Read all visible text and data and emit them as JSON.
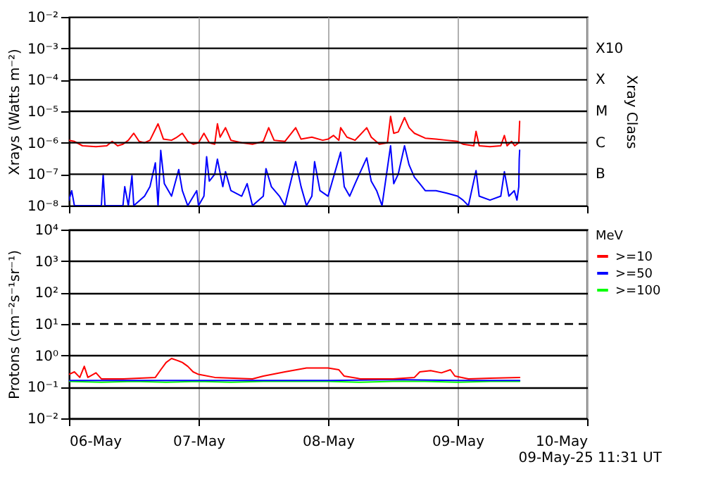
{
  "chart_data": [
    {
      "type": "line",
      "ylabel": "Xrays (Watts m⁻²)",
      "y2label": "Xray Class",
      "log": true,
      "grid": "x",
      "tick_labels": "y",
      "xlim": [
        "--05-06",
        "--05-10"
      ],
      "xticks": [
        {
          "value": "--05-06",
          "label": null
        },
        {
          "value": "--05-07",
          "label": null
        },
        {
          "value": "--05-08",
          "label": null
        },
        {
          "value": "--05-09",
          "label": null
        },
        {
          "value": "--05-10",
          "label": null
        }
      ],
      "ylim": [
        1e-08,
        0.01
      ],
      "yticks": [
        {
          "value": 1e-08,
          "label": "10⁻⁸"
        },
        {
          "value": 1e-07,
          "label": "10⁻⁷"
        },
        {
          "value": 1e-06,
          "label": "10⁻⁶"
        },
        {
          "value": 1e-05,
          "label": "10⁻⁵"
        },
        {
          "value": 0.0001,
          "label": "10⁻⁴"
        },
        {
          "value": 0.001,
          "label": "10⁻³"
        },
        {
          "value": 0.01,
          "label": "10⁻²"
        }
      ],
      "ref_lines": [
        {
          "axis": "y",
          "value": 1e-07,
          "label": "B",
          "color": "#000000"
        },
        {
          "axis": "y",
          "value": 1e-06,
          "label": "C",
          "color": "#000000"
        },
        {
          "axis": "y",
          "value": 1e-05,
          "label": "M",
          "color": "#000000"
        },
        {
          "axis": "y",
          "value": 0.0001,
          "label": "X",
          "color": "#000000"
        },
        {
          "axis": "y",
          "value": 0.001,
          "label": "X10",
          "color": "#000000"
        }
      ],
      "series": [
        {
          "color": "#ff0000",
          "x": [
            "--05-06T00:00",
            "--05-06T01:00",
            "--05-06T02:30",
            "--05-06T05:00",
            "--05-06T07:00",
            "--05-06T08:00",
            "--05-06T09:00",
            "--05-06T10:00",
            "--05-06T11:00",
            "--05-06T12:00",
            "--05-06T13:00",
            "--05-06T14:00",
            "--05-06T15:00",
            "--05-06T16:30",
            "--05-06T17:30",
            "--05-06T19:00",
            "--05-06T20:00",
            "--05-06T21:00",
            "--05-06T22:00",
            "--05-06T23:00",
            "--05-07T00:00",
            "--05-07T01:00",
            "--05-07T02:00",
            "--05-07T03:00",
            "--05-07T03:30",
            "--05-07T04:00",
            "--05-07T05:00",
            "--05-07T06:00",
            "--05-07T08:00",
            "--05-07T10:00",
            "--05-07T12:00",
            "--05-07T13:00",
            "--05-07T14:00",
            "--05-07T16:00",
            "--05-07T18:00",
            "--05-07T19:00",
            "--05-07T21:00",
            "--05-07T23:00",
            "--05-08T00:00",
            "--05-08T01:00",
            "--05-08T02:00",
            "--05-08T02:20",
            "--05-08T03:30",
            "--05-08T05:00",
            "--05-08T07:10",
            "--05-08T08:00",
            "--05-08T09:30",
            "--05-08T11:00",
            "--05-08T11:35",
            "--05-08T12:10",
            "--05-08T13:00",
            "--05-08T14:10",
            "--05-08T15:00",
            "--05-08T16:00",
            "--05-08T18:00",
            "--05-08T20:00",
            "--05-08T22:00",
            "--05-09T00:00",
            "--05-09T01:00",
            "--05-09T03:00",
            "--05-09T03:25",
            "--05-09T04:00",
            "--05-09T06:00",
            "--05-09T08:00",
            "--05-09T08:40",
            "--05-09T09:10",
            "--05-09T10:00",
            "--05-09T10:35",
            "--05-09T11:20",
            "--05-09T11:30"
          ],
          "values": [
            1.2e-06,
            1.1e-06,
            8e-07,
            7.5e-07,
            8e-07,
            1.1e-06,
            8e-07,
            9e-07,
            1.2e-06,
            2e-06,
            1.1e-06,
            1e-06,
            1.2e-06,
            4e-06,
            1.3e-06,
            1.2e-06,
            1.5e-06,
            2e-06,
            1.1e-06,
            9e-07,
            1e-06,
            2e-06,
            1e-06,
            9e-07,
            4e-06,
            1.5e-06,
            3e-06,
            1.2e-06,
            1e-06,
            9e-07,
            1.1e-06,
            3e-06,
            1.2e-06,
            1.1e-06,
            3e-06,
            1.3e-06,
            1.5e-06,
            1.2e-06,
            1.3e-06,
            1.7e-06,
            1.2e-06,
            3e-06,
            1.5e-06,
            1.2e-06,
            3e-06,
            1.5e-06,
            9e-07,
            1e-06,
            6.9e-06,
            2e-06,
            2.2e-06,
            6.3e-06,
            3e-06,
            2e-06,
            1.4e-06,
            1.3e-06,
            1.2e-06,
            1.1e-06,
            9e-07,
            8e-07,
            2.3e-06,
            8e-07,
            7.5e-07,
            8e-07,
            1.7e-06,
            8e-07,
            1.1e-06,
            8e-07,
            1e-06,
            4.8e-06
          ]
        },
        {
          "color": "#0000ff",
          "x": [
            "--05-06T00:00",
            "--05-06T00:30",
            "--05-06T01:00",
            "--05-06T06:00",
            "--05-06T06:20",
            "--05-06T06:40",
            "--05-06T10:00",
            "--05-06T10:20",
            "--05-06T11:00",
            "--05-06T11:40",
            "--05-06T12:00",
            "--05-06T14:00",
            "--05-06T15:00",
            "--05-06T16:00",
            "--05-06T16:30",
            "--05-06T17:00",
            "--05-06T17:40",
            "--05-06T19:00",
            "--05-06T20:20",
            "--05-06T21:00",
            "--05-06T22:00",
            "--05-06T23:40",
            "--05-07T00:00",
            "--05-07T01:00",
            "--05-07T01:30",
            "--05-07T02:00",
            "--05-07T03:00",
            "--05-07T03:30",
            "--05-07T04:30",
            "--05-07T05:00",
            "--05-07T06:00",
            "--05-07T08:00",
            "--05-07T09:00",
            "--05-07T10:00",
            "--05-07T12:00",
            "--05-07T12:30",
            "--05-07T13:30",
            "--05-07T15:00",
            "--05-07T16:00",
            "--05-07T18:00",
            "--05-07T19:00",
            "--05-07T20:00",
            "--05-07T21:00",
            "--05-07T21:30",
            "--05-07T22:30",
            "--05-08T00:00",
            "--05-08T01:00",
            "--05-08T02:20",
            "--05-08T03:00",
            "--05-08T04:00",
            "--05-08T05:00",
            "--05-08T07:10",
            "--05-08T08:00",
            "--05-08T09:00",
            "--05-08T10:00",
            "--05-08T11:35",
            "--05-08T12:10",
            "--05-08T13:00",
            "--05-08T14:10",
            "--05-08T15:00",
            "--05-08T16:00",
            "--05-08T17:00",
            "--05-08T18:00",
            "--05-08T20:00",
            "--05-08T22:00",
            "--05-09T00:00",
            "--05-09T01:00",
            "--05-09T02:00",
            "--05-09T03:25",
            "--05-09T04:00",
            "--05-09T06:00",
            "--05-09T08:00",
            "--05-09T08:40",
            "--05-09T09:30",
            "--05-09T10:30",
            "--05-09T11:00",
            "--05-09T11:20",
            "--05-09T11:25",
            "--05-09T11:30"
          ],
          "values": [
            1.5e-08,
            3e-08,
            1e-08,
            1e-08,
            1e-07,
            1e-08,
            1e-08,
            4e-08,
            1e-08,
            9e-08,
            1e-08,
            2e-08,
            4e-08,
            2.3e-07,
            1e-08,
            5.7e-07,
            5e-08,
            2e-08,
            1.4e-07,
            3e-08,
            1e-08,
            3e-08,
            1e-08,
            2e-08,
            3.6e-07,
            6e-08,
            1e-07,
            3e-07,
            4e-08,
            1.2e-07,
            3e-08,
            2e-08,
            5e-08,
            1e-08,
            2e-08,
            1.5e-07,
            4e-08,
            2e-08,
            1e-08,
            2.5e-07,
            4e-08,
            1e-08,
            2e-08,
            2.5e-07,
            3e-08,
            2e-08,
            8e-08,
            5e-07,
            4e-08,
            2e-08,
            5e-08,
            3.3e-07,
            6e-08,
            3e-08,
            1e-08,
            8e-07,
            5e-08,
            1e-07,
            8e-07,
            2e-07,
            8e-08,
            5e-08,
            3e-08,
            3e-08,
            2.5e-08,
            2e-08,
            1.5e-08,
            1e-08,
            1.3e-07,
            2e-08,
            1.5e-08,
            2e-08,
            1.2e-07,
            2e-08,
            3e-08,
            1.5e-08,
            4e-08,
            3e-07,
            5.8e-07
          ]
        }
      ]
    },
    {
      "type": "line",
      "ylabel": "Protons (cm⁻²s⁻¹sr⁻¹)",
      "legend_title": "MeV",
      "legend": "right",
      "log": true,
      "grid": true,
      "annotations": [
        "09-May-25 11:31 UT"
      ],
      "xlim": [
        "--05-06",
        "--05-10"
      ],
      "xticks": [
        {
          "value": "--05-06",
          "label": "06-May"
        },
        {
          "value": "--05-07",
          "label": "07-May"
        },
        {
          "value": "--05-08",
          "label": "08-May"
        },
        {
          "value": "--05-09",
          "label": "09-May"
        },
        {
          "value": "--05-10",
          "label": "10-May"
        }
      ],
      "ylim": [
        0.01,
        10000
      ],
      "yticks": [
        {
          "value": 0.01,
          "label": "10⁻²"
        },
        {
          "value": 0.1,
          "label": "10⁻¹"
        },
        {
          "value": 1,
          "label": "10⁰"
        },
        {
          "value": 10,
          "label": "10¹"
        },
        {
          "value": 100,
          "label": "10²"
        },
        {
          "value": 1000,
          "label": "10³"
        },
        {
          "value": 10000,
          "label": "10⁴"
        }
      ],
      "ref_lines": [
        {
          "axis": "y",
          "value": 10,
          "color": "#000000",
          "line_style": "dashed"
        }
      ],
      "series": [
        {
          "name": ">=100",
          "color": "#00ff00",
          "x": [
            "--05-06T00:00",
            "--05-06T06:00",
            "--05-06T12:00",
            "--05-06T18:00",
            "--05-07T00:00",
            "--05-07T06:00",
            "--05-07T12:00",
            "--05-07T18:00",
            "--05-08T00:00",
            "--05-08T06:00",
            "--05-08T12:00",
            "--05-08T18:00",
            "--05-09T00:00",
            "--05-09T06:00",
            "--05-09T11:30"
          ],
          "values": [
            0.15,
            0.14,
            0.15,
            0.14,
            0.15,
            0.14,
            0.15,
            0.15,
            0.15,
            0.14,
            0.15,
            0.15,
            0.14,
            0.15,
            0.15
          ]
        },
        {
          "name": ">=50",
          "color": "#0000ff",
          "x": [
            "--05-06T00:00",
            "--05-06T12:00",
            "--05-07T00:00",
            "--05-07T12:00",
            "--05-08T00:00",
            "--05-08T12:00",
            "--05-09T00:00",
            "--05-09T11:30"
          ],
          "values": [
            0.16,
            0.16,
            0.16,
            0.16,
            0.16,
            0.17,
            0.16,
            0.16
          ]
        },
        {
          "name": ">=10",
          "color": "#ff0000",
          "x": [
            "--05-06T00:00",
            "--05-06T01:00",
            "--05-06T02:00",
            "--05-06T02:50",
            "--05-06T03:30",
            "--05-06T05:00",
            "--05-06T06:00",
            "--05-06T10:00",
            "--05-06T16:00",
            "--05-06T17:00",
            "--05-06T18:00",
            "--05-06T19:00",
            "--05-06T20:00",
            "--05-06T21:00",
            "--05-06T22:00",
            "--05-06T23:00",
            "--05-07T00:00",
            "--05-07T03:00",
            "--05-07T10:00",
            "--05-07T12:00",
            "--05-07T16:00",
            "--05-07T20:00",
            "--05-08T00:00",
            "--05-08T02:00",
            "--05-08T03:00",
            "--05-08T06:00",
            "--05-08T12:00",
            "--05-08T16:00",
            "--05-08T17:00",
            "--05-08T19:00",
            "--05-08T21:00",
            "--05-08T22:40",
            "--05-08T23:30",
            "--05-09T02:00",
            "--05-09T06:00",
            "--05-09T11:30"
          ],
          "values": [
            0.25,
            0.3,
            0.2,
            0.45,
            0.2,
            0.28,
            0.18,
            0.18,
            0.2,
            0.35,
            0.6,
            0.8,
            0.7,
            0.6,
            0.45,
            0.3,
            0.25,
            0.2,
            0.18,
            0.22,
            0.3,
            0.4,
            0.4,
            0.35,
            0.22,
            0.18,
            0.18,
            0.2,
            0.3,
            0.33,
            0.28,
            0.35,
            0.22,
            0.18,
            0.19,
            0.2
          ]
        }
      ]
    }
  ]
}
